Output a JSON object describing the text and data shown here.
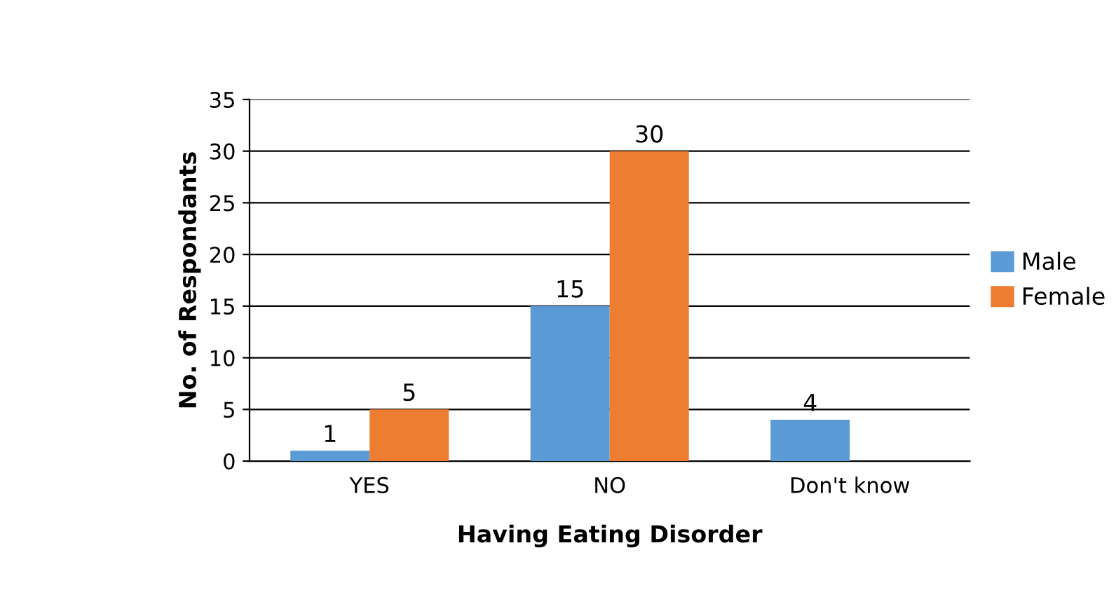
{
  "chart_data": {
    "type": "bar",
    "xlabel": "Having Eating Disorder",
    "ylabel": "No. of Respondants",
    "categories": [
      "YES",
      "NO",
      "Don't know"
    ],
    "series": [
      {
        "name": "Male",
        "color": "#5b9bd5",
        "values": [
          1,
          15,
          4
        ],
        "value_labels": [
          "1",
          "15",
          "4"
        ]
      },
      {
        "name": "Female",
        "color": "#ed7d31",
        "values": [
          5,
          30,
          0
        ],
        "value_labels": [
          "5",
          "30",
          null
        ]
      }
    ],
    "ylim": [
      0,
      35
    ],
    "yticks": [
      0,
      5,
      10,
      15,
      20,
      25,
      30,
      35
    ],
    "grid": "y",
    "legend": "right"
  }
}
